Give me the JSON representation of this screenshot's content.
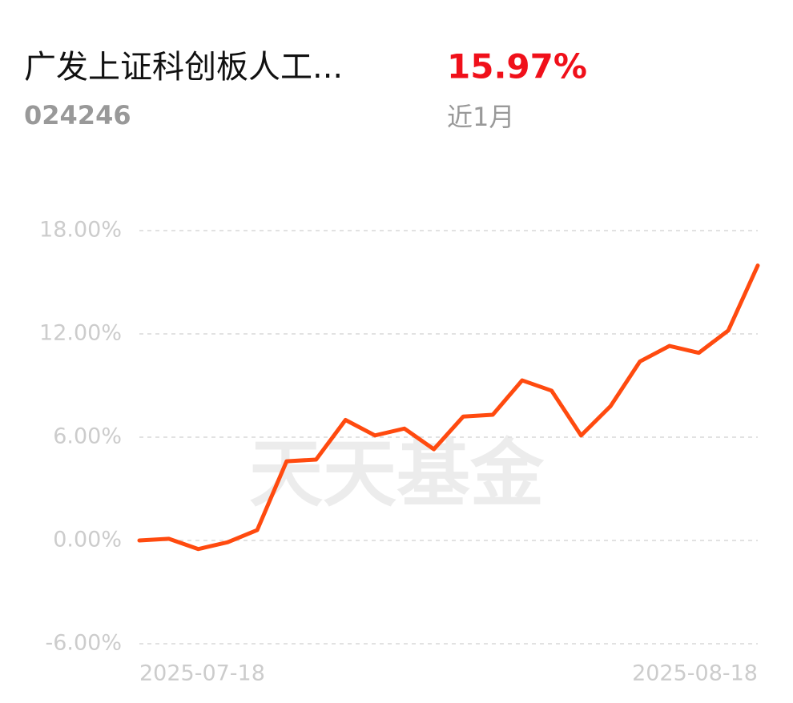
{
  "header": {
    "title": "广发上证科创板人工...",
    "code": "024246",
    "return": "15.97%",
    "period": "近1月"
  },
  "chart_data": {
    "type": "line",
    "watermark": "天天基金",
    "categories": [
      "2025-07-18",
      null,
      null,
      null,
      null,
      null,
      null,
      null,
      null,
      null,
      null,
      null,
      null,
      null,
      null,
      null,
      null,
      null,
      null,
      null,
      null,
      "2025-08-18"
    ],
    "series": [
      {
        "color": "#ff4a0f",
        "values": [
          0.0,
          0.1,
          -0.5,
          -0.1,
          0.6,
          4.6,
          4.7,
          7.0,
          6.1,
          6.5,
          5.3,
          7.2,
          7.3,
          9.3,
          8.7,
          6.1,
          7.8,
          10.4,
          11.3,
          10.9,
          12.2,
          15.97
        ]
      }
    ],
    "ylim": [
      -6,
      18
    ],
    "yticks": [
      {
        "value": -6,
        "label": "-6.00%"
      },
      {
        "value": 0,
        "label": "0.00%"
      },
      {
        "value": 6,
        "label": "6.00%"
      },
      {
        "value": 12,
        "label": "12.00%"
      },
      {
        "value": 18,
        "label": "18.00%"
      }
    ],
    "grid": true
  }
}
